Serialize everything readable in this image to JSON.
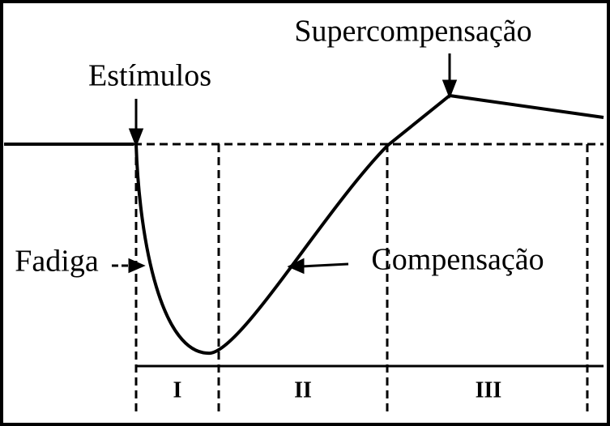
{
  "labels": {
    "supercompensation": "Supercompensação",
    "stimulus": "Estímulos",
    "fatigue": "Fadiga",
    "compensation": "Compensação"
  },
  "phases": [
    "I",
    "II",
    "III"
  ]
}
